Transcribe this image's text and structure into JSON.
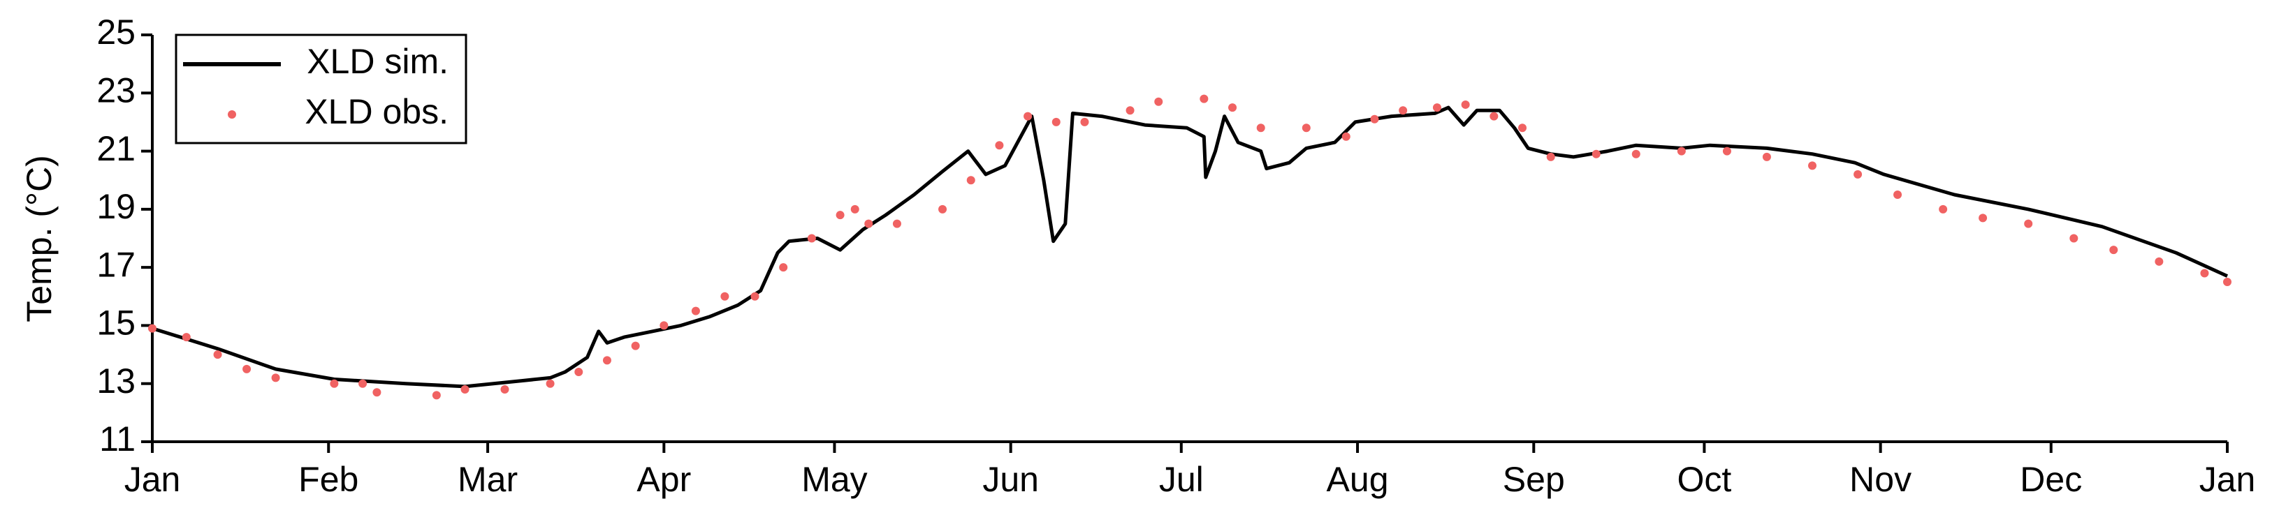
{
  "chart_data": {
    "type": "line_scatter",
    "ylabel": "Temp. (°C)",
    "xlim": [
      0,
      365
    ],
    "ylim": [
      11,
      25
    ],
    "xticks": [
      {
        "value": 0,
        "label": "Jan"
      },
      {
        "value": 31,
        "label": "Feb"
      },
      {
        "value": 59,
        "label": "Mar"
      },
      {
        "value": 90,
        "label": "Apr"
      },
      {
        "value": 120,
        "label": "May"
      },
      {
        "value": 151,
        "label": "Jun"
      },
      {
        "value": 181,
        "label": "Jul"
      },
      {
        "value": 212,
        "label": "Aug"
      },
      {
        "value": 243,
        "label": "Sep"
      },
      {
        "value": 273,
        "label": "Oct"
      },
      {
        "value": 304,
        "label": "Nov"
      },
      {
        "value": 334,
        "label": "Dec"
      },
      {
        "value": 365,
        "label": "Jan"
      }
    ],
    "yticks": [
      11,
      13,
      15,
      17,
      19,
      21,
      23,
      25
    ],
    "legend": "upper left",
    "series": [
      {
        "name": "XLD sim.",
        "kind": "line",
        "color": "#000000",
        "x": [
          0,
          11.5,
          21.7,
          32,
          44.6,
          55,
          65,
          70,
          72.6,
          76.5,
          78.5,
          80,
          83,
          88,
          93,
          98,
          103,
          107,
          110,
          112,
          117,
          121,
          125,
          129,
          134,
          139,
          143.5,
          146.6,
          150,
          154.7,
          156.8,
          158.5,
          160.6,
          161.9,
          167,
          174.6,
          182,
          185,
          185.3,
          187,
          188.6,
          191,
          195,
          196,
          200,
          203,
          208,
          211.6,
          218,
          225.6,
          228,
          230.7,
          233,
          237,
          239.6,
          242,
          246,
          250,
          256,
          261,
          269,
          274,
          284,
          292,
          299.5,
          304.6,
          317,
          330,
          343,
          356,
          365
        ],
        "values": [
          14.9,
          14.2,
          13.5,
          13.15,
          13.0,
          12.9,
          13.1,
          13.2,
          13.4,
          13.9,
          14.8,
          14.4,
          14.6,
          14.8,
          15.0,
          15.3,
          15.7,
          16.2,
          17.5,
          17.9,
          18.0,
          17.6,
          18.3,
          18.8,
          19.5,
          20.3,
          21.0,
          20.2,
          20.5,
          22.2,
          20.0,
          17.9,
          18.5,
          22.3,
          22.2,
          21.9,
          21.8,
          21.5,
          20.1,
          21.0,
          22.2,
          21.3,
          21.0,
          20.4,
          20.6,
          21.1,
          21.3,
          22.0,
          22.2,
          22.3,
          22.5,
          21.9,
          22.4,
          22.4,
          21.8,
          21.1,
          20.9,
          20.8,
          21.0,
          21.2,
          21.1,
          21.2,
          21.1,
          20.9,
          20.6,
          20.2,
          19.5,
          19.0,
          18.4,
          17.5,
          16.7
        ]
      },
      {
        "name": "XLD obs.",
        "kind": "scatter",
        "color": "#f06262",
        "x": [
          0,
          6,
          11.5,
          16.6,
          21.7,
          32,
          37,
          39.5,
          50,
          55,
          62,
          70,
          75,
          80,
          85,
          90,
          95.6,
          100.7,
          106,
          111,
          116,
          121,
          123.6,
          126,
          131,
          139,
          144,
          149,
          154,
          159,
          164,
          172,
          177,
          185,
          190,
          195,
          203,
          210,
          215,
          220,
          226,
          231,
          236,
          241,
          246,
          254,
          261,
          269,
          277,
          284,
          292,
          300,
          307,
          315,
          322,
          330,
          338,
          345,
          353,
          361,
          365
        ],
        "values": [
          14.9,
          14.6,
          14.0,
          13.5,
          13.2,
          13.0,
          13.0,
          12.7,
          12.6,
          12.8,
          12.8,
          13.0,
          13.4,
          13.8,
          14.3,
          15.0,
          15.5,
          16.0,
          16.0,
          17.0,
          18.0,
          18.8,
          19.0,
          18.5,
          18.5,
          19.0,
          20.0,
          21.2,
          22.2,
          22.0,
          22.0,
          22.4,
          22.7,
          22.8,
          22.5,
          21.8,
          21.8,
          21.5,
          22.1,
          22.4,
          22.5,
          22.6,
          22.2,
          21.8,
          20.8,
          20.9,
          20.9,
          21.0,
          21.0,
          20.8,
          20.5,
          20.2,
          19.5,
          19.0,
          18.7,
          18.5,
          18.0,
          17.6,
          17.2,
          16.8,
          16.5
        ]
      }
    ]
  }
}
